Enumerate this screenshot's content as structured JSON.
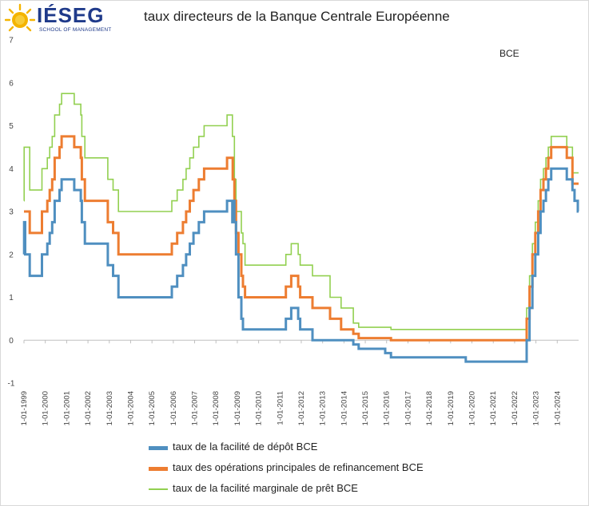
{
  "logo": {
    "brand": "IÉSEG",
    "sub": "SCHOOL OF MANAGEMENT"
  },
  "chart_data": {
    "type": "line",
    "title": "taux directeurs de la Banque Centrale Européenne",
    "annotation": "BCE",
    "xlabel": "",
    "ylabel": "",
    "ylim": [
      -1,
      7
    ],
    "yticks": [
      -1,
      0,
      1,
      2,
      3,
      4,
      5,
      6,
      7
    ],
    "xlim": [
      "1999-01-01",
      "2025-01-01"
    ],
    "xticks": [
      "1-01-1999",
      "1-01-2000",
      "1-01-2001",
      "1-01-2002",
      "1-01-2003",
      "1-01-2004",
      "1-01-2005",
      "1-01-2006",
      "1-01-2007",
      "1-01-2008",
      "1-01-2009",
      "1-01-2010",
      "1-01-2011",
      "1-01-2012",
      "1-01-2013",
      "1-01-2014",
      "1-01-2015",
      "1-01-2016",
      "1-01-2017",
      "1-01-2018",
      "1-01-2019",
      "1-01-2020",
      "1-01-2021",
      "1-01-2022",
      "1-01-2023",
      "1-01-2024"
    ],
    "grid": false,
    "legend_position": "bottom",
    "series": [
      {
        "name": "taux de la facilité de dépôt BCE",
        "color": "#4f8fc0",
        "points": [
          [
            "1999-01-01",
            2.0
          ],
          [
            "1999-01-04",
            2.75
          ],
          [
            "1999-01-22",
            2.0
          ],
          [
            "1999-04-09",
            1.5
          ],
          [
            "1999-11-05",
            2.0
          ],
          [
            "2000-02-04",
            2.25
          ],
          [
            "2000-03-17",
            2.5
          ],
          [
            "2000-04-28",
            2.75
          ],
          [
            "2000-06-09",
            3.25
          ],
          [
            "2000-09-01",
            3.5
          ],
          [
            "2000-10-06",
            3.75
          ],
          [
            "2001-05-11",
            3.5
          ],
          [
            "2001-08-31",
            3.25
          ],
          [
            "2001-09-18",
            2.75
          ],
          [
            "2001-11-09",
            2.25
          ],
          [
            "2002-12-06",
            1.75
          ],
          [
            "2003-03-07",
            1.5
          ],
          [
            "2003-06-06",
            1.0
          ],
          [
            "2005-12-06",
            1.25
          ],
          [
            "2006-03-08",
            1.5
          ],
          [
            "2006-06-15",
            1.75
          ],
          [
            "2006-08-09",
            2.0
          ],
          [
            "2006-10-11",
            2.25
          ],
          [
            "2006-12-13",
            2.5
          ],
          [
            "2007-03-14",
            2.75
          ],
          [
            "2007-06-13",
            3.0
          ],
          [
            "2008-07-09",
            3.25
          ],
          [
            "2008-10-08",
            2.75
          ],
          [
            "2008-10-09",
            3.25
          ],
          [
            "2008-11-12",
            2.75
          ],
          [
            "2008-12-10",
            2.0
          ],
          [
            "2009-01-21",
            1.0
          ],
          [
            "2009-03-11",
            0.5
          ],
          [
            "2009-04-08",
            0.25
          ],
          [
            "2011-04-13",
            0.5
          ],
          [
            "2011-07-13",
            0.75
          ],
          [
            "2011-11-09",
            0.5
          ],
          [
            "2011-12-14",
            0.25
          ],
          [
            "2012-07-11",
            0.0
          ],
          [
            "2014-06-11",
            -0.1
          ],
          [
            "2014-09-10",
            -0.2
          ],
          [
            "2015-12-09",
            -0.3
          ],
          [
            "2016-03-16",
            -0.4
          ],
          [
            "2019-09-18",
            -0.5
          ],
          [
            "2022-07-27",
            0.0
          ],
          [
            "2022-09-14",
            0.75
          ],
          [
            "2022-11-02",
            1.5
          ],
          [
            "2022-12-21",
            2.0
          ],
          [
            "2023-02-08",
            2.5
          ],
          [
            "2023-03-22",
            3.0
          ],
          [
            "2023-05-10",
            3.25
          ],
          [
            "2023-06-21",
            3.5
          ],
          [
            "2023-08-02",
            3.75
          ],
          [
            "2023-09-20",
            4.0
          ],
          [
            "2024-06-12",
            3.75
          ],
          [
            "2024-09-18",
            3.5
          ],
          [
            "2024-10-23",
            3.25
          ],
          [
            "2024-12-18",
            3.0
          ],
          [
            "2025-01-01",
            3.0
          ]
        ]
      },
      {
        "name": "taux des opérations principales de refinancement BCE",
        "color": "#ed7d31",
        "points": [
          [
            "1999-01-01",
            3.0
          ],
          [
            "1999-04-09",
            2.5
          ],
          [
            "1999-11-05",
            3.0
          ],
          [
            "2000-02-04",
            3.25
          ],
          [
            "2000-03-17",
            3.5
          ],
          [
            "2000-04-28",
            3.75
          ],
          [
            "2000-06-09",
            4.25
          ],
          [
            "2000-09-01",
            4.5
          ],
          [
            "2000-10-06",
            4.75
          ],
          [
            "2001-05-11",
            4.5
          ],
          [
            "2001-08-31",
            4.25
          ],
          [
            "2001-09-18",
            3.75
          ],
          [
            "2001-11-09",
            3.25
          ],
          [
            "2002-12-06",
            2.75
          ],
          [
            "2003-03-07",
            2.5
          ],
          [
            "2003-06-06",
            2.0
          ],
          [
            "2005-12-06",
            2.25
          ],
          [
            "2006-03-08",
            2.5
          ],
          [
            "2006-06-15",
            2.75
          ],
          [
            "2006-08-09",
            3.0
          ],
          [
            "2006-10-11",
            3.25
          ],
          [
            "2006-12-13",
            3.5
          ],
          [
            "2007-03-14",
            3.75
          ],
          [
            "2007-06-13",
            4.0
          ],
          [
            "2008-07-09",
            4.25
          ],
          [
            "2008-10-15",
            3.75
          ],
          [
            "2008-11-12",
            3.25
          ],
          [
            "2008-12-10",
            2.5
          ],
          [
            "2009-01-21",
            2.0
          ],
          [
            "2009-03-11",
            1.5
          ],
          [
            "2009-04-08",
            1.25
          ],
          [
            "2009-05-13",
            1.0
          ],
          [
            "2011-04-13",
            1.25
          ],
          [
            "2011-07-13",
            1.5
          ],
          [
            "2011-11-09",
            1.25
          ],
          [
            "2011-12-14",
            1.0
          ],
          [
            "2012-07-11",
            0.75
          ],
          [
            "2013-05-08",
            0.5
          ],
          [
            "2013-11-13",
            0.25
          ],
          [
            "2014-06-11",
            0.15
          ],
          [
            "2014-09-10",
            0.05
          ],
          [
            "2016-03-16",
            0.0
          ],
          [
            "2022-07-27",
            0.5
          ],
          [
            "2022-09-14",
            1.25
          ],
          [
            "2022-11-02",
            2.0
          ],
          [
            "2022-12-21",
            2.5
          ],
          [
            "2023-02-08",
            3.0
          ],
          [
            "2023-03-22",
            3.5
          ],
          [
            "2023-05-10",
            3.75
          ],
          [
            "2023-06-21",
            4.0
          ],
          [
            "2023-08-02",
            4.25
          ],
          [
            "2023-09-20",
            4.5
          ],
          [
            "2024-06-12",
            4.25
          ],
          [
            "2024-09-18",
            3.65
          ],
          [
            "2025-01-01",
            3.65
          ]
        ]
      },
      {
        "name": "taux de la facilité marginale de prêt BCE",
        "color": "#92d050",
        "points": [
          [
            "1999-01-01",
            3.25
          ],
          [
            "1999-01-04",
            4.5
          ],
          [
            "1999-01-22",
            4.5
          ],
          [
            "1999-04-09",
            3.5
          ],
          [
            "1999-11-05",
            4.0
          ],
          [
            "2000-02-04",
            4.25
          ],
          [
            "2000-03-17",
            4.5
          ],
          [
            "2000-04-28",
            4.75
          ],
          [
            "2000-06-09",
            5.25
          ],
          [
            "2000-09-01",
            5.5
          ],
          [
            "2000-10-06",
            5.75
          ],
          [
            "2001-05-11",
            5.5
          ],
          [
            "2001-08-31",
            5.25
          ],
          [
            "2001-09-18",
            4.75
          ],
          [
            "2001-11-09",
            4.25
          ],
          [
            "2002-12-06",
            3.75
          ],
          [
            "2003-03-07",
            3.5
          ],
          [
            "2003-06-06",
            3.0
          ],
          [
            "2005-12-06",
            3.25
          ],
          [
            "2006-03-08",
            3.5
          ],
          [
            "2006-06-15",
            3.75
          ],
          [
            "2006-08-09",
            4.0
          ],
          [
            "2006-10-11",
            4.25
          ],
          [
            "2006-12-13",
            4.5
          ],
          [
            "2007-03-14",
            4.75
          ],
          [
            "2007-06-13",
            5.0
          ],
          [
            "2008-07-09",
            5.25
          ],
          [
            "2008-10-09",
            4.75
          ],
          [
            "2008-11-12",
            3.75
          ],
          [
            "2008-12-10",
            3.0
          ],
          [
            "2009-01-21",
            3.0
          ],
          [
            "2009-03-11",
            2.5
          ],
          [
            "2009-04-08",
            2.25
          ],
          [
            "2009-05-13",
            1.75
          ],
          [
            "2011-04-13",
            2.0
          ],
          [
            "2011-07-13",
            2.25
          ],
          [
            "2011-11-09",
            2.0
          ],
          [
            "2011-12-14",
            1.75
          ],
          [
            "2012-07-11",
            1.5
          ],
          [
            "2013-05-08",
            1.0
          ],
          [
            "2013-11-13",
            0.75
          ],
          [
            "2014-06-11",
            0.4
          ],
          [
            "2014-09-10",
            0.3
          ],
          [
            "2016-03-16",
            0.25
          ],
          [
            "2022-07-27",
            0.75
          ],
          [
            "2022-09-14",
            1.5
          ],
          [
            "2022-11-02",
            2.25
          ],
          [
            "2022-12-21",
            2.75
          ],
          [
            "2023-02-08",
            3.25
          ],
          [
            "2023-03-22",
            3.75
          ],
          [
            "2023-05-10",
            4.0
          ],
          [
            "2023-06-21",
            4.25
          ],
          [
            "2023-08-02",
            4.5
          ],
          [
            "2023-09-20",
            4.75
          ],
          [
            "2024-06-12",
            4.5
          ],
          [
            "2024-09-18",
            3.9
          ],
          [
            "2025-01-01",
            3.9
          ]
        ]
      }
    ]
  }
}
